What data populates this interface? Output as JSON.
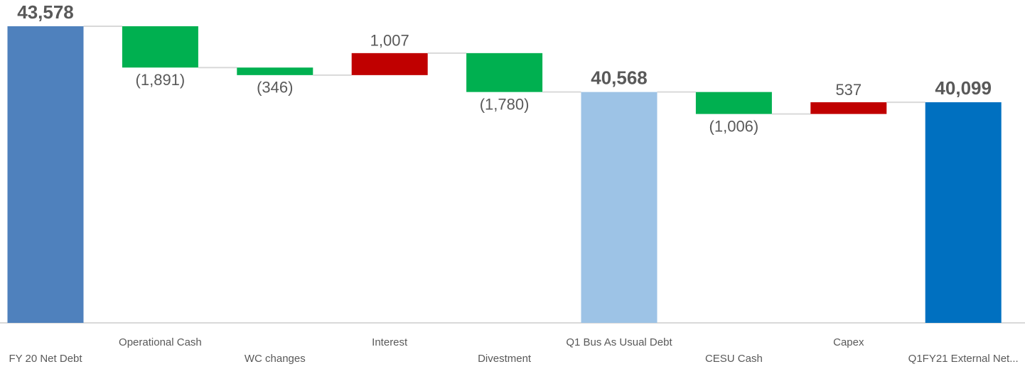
{
  "chart_data": {
    "type": "waterfall",
    "categories": [
      "FY 20 Net Debt",
      "Operational Cash",
      "WC changes",
      "Interest",
      "Divestment",
      "Q1 Bus As Usual Debt",
      "CESU Cash",
      "Capex",
      "Q1FY21 External Net..."
    ],
    "values": [
      43578,
      -1891,
      -346,
      1007,
      -1780,
      40568,
      -1006,
      537,
      40099
    ],
    "value_labels": [
      "43,578",
      "(1,891)",
      "(346)",
      "1,007",
      "(1,780)",
      "40,568",
      "(1,006)",
      "537",
      "40,099"
    ],
    "colors": [
      "#4f81bd",
      "#00b050",
      "#00b050",
      "#c00000",
      "#00b050",
      "#9dc3e6",
      "#00b050",
      "#c00000",
      "#0070c0"
    ],
    "ylim": [
      30000,
      44500
    ]
  }
}
